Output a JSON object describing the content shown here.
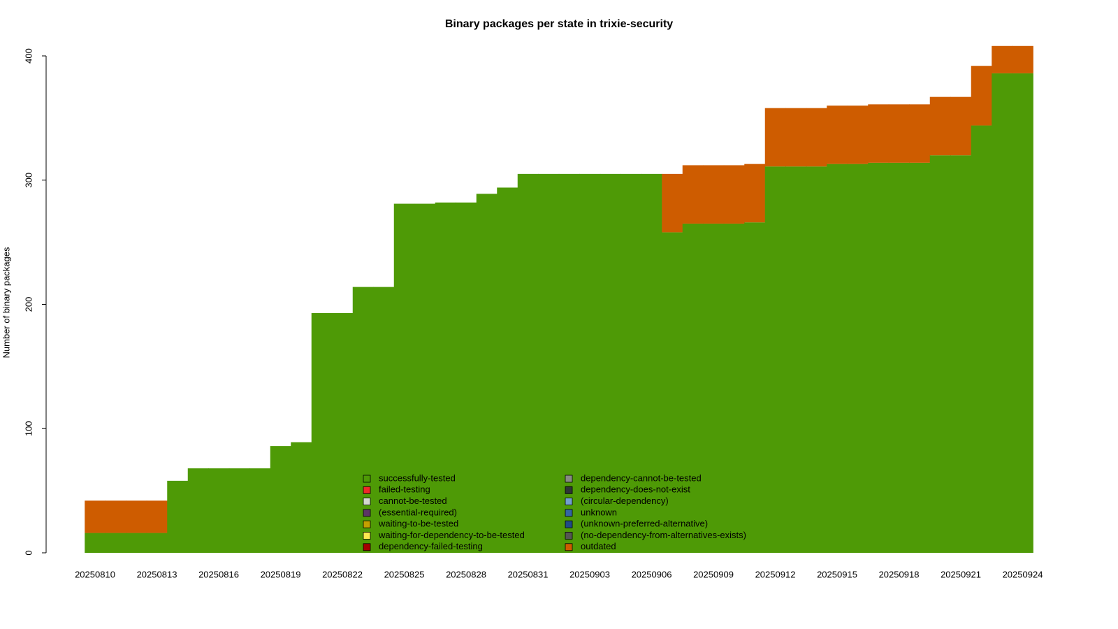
{
  "chart_data": {
    "type": "stacked-step-area",
    "title": "Binary packages per state in trixie-security",
    "y_label": "Number of binary packages",
    "ylim": [
      0,
      400
    ],
    "yticks": [
      0,
      100,
      200,
      300,
      400
    ],
    "categories": [
      "20250810",
      null,
      null,
      "20250813",
      null,
      null,
      "20250816",
      null,
      null,
      "20250819",
      null,
      null,
      "20250822",
      null,
      null,
      "20250825",
      null,
      null,
      "20250828",
      null,
      null,
      "20250831",
      null,
      null,
      "20250903",
      null,
      null,
      "20250906",
      null,
      null,
      "20250909",
      null,
      null,
      "20250912",
      null,
      null,
      "20250915",
      null,
      null,
      "20250918",
      null,
      null,
      "20250921",
      null,
      null,
      "20250924"
    ],
    "series": [
      {
        "name": "successfully-tested",
        "color": "#4e9a06",
        "values": [
          16,
          16,
          16,
          16,
          58,
          68,
          68,
          68,
          68,
          86,
          89,
          193,
          193,
          214,
          214,
          281,
          281,
          282,
          282,
          289,
          294,
          305,
          305,
          305,
          305,
          305,
          305,
          305,
          258,
          265,
          265,
          265,
          266,
          311,
          311,
          311,
          313,
          313,
          314,
          314,
          314,
          320,
          320,
          344,
          386,
          386
        ]
      },
      {
        "name": "failed-testing",
        "color": "#ef2929",
        "values": [
          0,
          0,
          0,
          0,
          0,
          0,
          0,
          0,
          0,
          0,
          0,
          0,
          0,
          0,
          0,
          0,
          0,
          0,
          0,
          0,
          0,
          0,
          0,
          0,
          0,
          0,
          0,
          0,
          0,
          0,
          0,
          0,
          0,
          0,
          0,
          0,
          0,
          0,
          0,
          0,
          0,
          0,
          0,
          0,
          0,
          0
        ]
      },
      {
        "name": "cannot-be-tested",
        "color": "#d3d7cf",
        "values": [
          0,
          0,
          0,
          0,
          0,
          0,
          0,
          0,
          0,
          0,
          0,
          0,
          0,
          0,
          0,
          0,
          0,
          0,
          0,
          0,
          0,
          0,
          0,
          0,
          0,
          0,
          0,
          0,
          0,
          0,
          0,
          0,
          0,
          0,
          0,
          0,
          0,
          0,
          0,
          0,
          0,
          0,
          0,
          0,
          0,
          0
        ]
      },
      {
        "name": "(essential-required)",
        "color": "#5c3566",
        "values": [
          0,
          0,
          0,
          0,
          0,
          0,
          0,
          0,
          0,
          0,
          0,
          0,
          0,
          0,
          0,
          0,
          0,
          0,
          0,
          0,
          0,
          0,
          0,
          0,
          0,
          0,
          0,
          0,
          0,
          0,
          0,
          0,
          0,
          0,
          0,
          0,
          0,
          0,
          0,
          0,
          0,
          0,
          0,
          0,
          0,
          0
        ]
      },
      {
        "name": "waiting-to-be-tested",
        "color": "#c4a000",
        "values": [
          0,
          0,
          0,
          0,
          0,
          0,
          0,
          0,
          0,
          0,
          0,
          0,
          0,
          0,
          0,
          0,
          0,
          0,
          0,
          0,
          0,
          0,
          0,
          0,
          0,
          0,
          0,
          0,
          0,
          0,
          0,
          0,
          0,
          0,
          0,
          0,
          0,
          0,
          0,
          0,
          0,
          0,
          0,
          0,
          0,
          0
        ]
      },
      {
        "name": "waiting-for-dependency-to-be-tested",
        "color": "#fce94f",
        "values": [
          0,
          0,
          0,
          0,
          0,
          0,
          0,
          0,
          0,
          0,
          0,
          0,
          0,
          0,
          0,
          0,
          0,
          0,
          0,
          0,
          0,
          0,
          0,
          0,
          0,
          0,
          0,
          0,
          0,
          0,
          0,
          0,
          0,
          0,
          0,
          0,
          0,
          0,
          0,
          0,
          0,
          0,
          0,
          0,
          0,
          0
        ]
      },
      {
        "name": "dependency-failed-testing",
        "color": "#a40000",
        "values": [
          0,
          0,
          0,
          0,
          0,
          0,
          0,
          0,
          0,
          0,
          0,
          0,
          0,
          0,
          0,
          0,
          0,
          0,
          0,
          0,
          0,
          0,
          0,
          0,
          0,
          0,
          0,
          0,
          0,
          0,
          0,
          0,
          0,
          0,
          0,
          0,
          0,
          0,
          0,
          0,
          0,
          0,
          0,
          0,
          0,
          0
        ]
      },
      {
        "name": "dependency-cannot-be-tested",
        "color": "#888a85",
        "values": [
          0,
          0,
          0,
          0,
          0,
          0,
          0,
          0,
          0,
          0,
          0,
          0,
          0,
          0,
          0,
          0,
          0,
          0,
          0,
          0,
          0,
          0,
          0,
          0,
          0,
          0,
          0,
          0,
          0,
          0,
          0,
          0,
          0,
          0,
          0,
          0,
          0,
          0,
          0,
          0,
          0,
          0,
          0,
          0,
          0,
          0
        ]
      },
      {
        "name": "dependency-does-not-exist",
        "color": "#2e3436",
        "values": [
          0,
          0,
          0,
          0,
          0,
          0,
          0,
          0,
          0,
          0,
          0,
          0,
          0,
          0,
          0,
          0,
          0,
          0,
          0,
          0,
          0,
          0,
          0,
          0,
          0,
          0,
          0,
          0,
          0,
          0,
          0,
          0,
          0,
          0,
          0,
          0,
          0,
          0,
          0,
          0,
          0,
          0,
          0,
          0,
          0,
          0
        ]
      },
      {
        "name": "(circular-dependency)",
        "color": "#729fcf",
        "values": [
          0,
          0,
          0,
          0,
          0,
          0,
          0,
          0,
          0,
          0,
          0,
          0,
          0,
          0,
          0,
          0,
          0,
          0,
          0,
          0,
          0,
          0,
          0,
          0,
          0,
          0,
          0,
          0,
          0,
          0,
          0,
          0,
          0,
          0,
          0,
          0,
          0,
          0,
          0,
          0,
          0,
          0,
          0,
          0,
          0,
          0
        ]
      },
      {
        "name": "unknown",
        "color": "#3465a4",
        "values": [
          0,
          0,
          0,
          0,
          0,
          0,
          0,
          0,
          0,
          0,
          0,
          0,
          0,
          0,
          0,
          0,
          0,
          0,
          0,
          0,
          0,
          0,
          0,
          0,
          0,
          0,
          0,
          0,
          0,
          0,
          0,
          0,
          0,
          0,
          0,
          0,
          0,
          0,
          0,
          0,
          0,
          0,
          0,
          0,
          0,
          0
        ]
      },
      {
        "name": "(unknown-preferred-alternative)",
        "color": "#204a87",
        "values": [
          0,
          0,
          0,
          0,
          0,
          0,
          0,
          0,
          0,
          0,
          0,
          0,
          0,
          0,
          0,
          0,
          0,
          0,
          0,
          0,
          0,
          0,
          0,
          0,
          0,
          0,
          0,
          0,
          0,
          0,
          0,
          0,
          0,
          0,
          0,
          0,
          0,
          0,
          0,
          0,
          0,
          0,
          0,
          0,
          0,
          0
        ]
      },
      {
        "name": "(no-dependency-from-alternatives-exists)",
        "color": "#555753",
        "values": [
          0,
          0,
          0,
          0,
          0,
          0,
          0,
          0,
          0,
          0,
          0,
          0,
          0,
          0,
          0,
          0,
          0,
          0,
          0,
          0,
          0,
          0,
          0,
          0,
          0,
          0,
          0,
          0,
          0,
          0,
          0,
          0,
          0,
          0,
          0,
          0,
          0,
          0,
          0,
          0,
          0,
          0,
          0,
          0,
          0,
          0
        ]
      },
      {
        "name": "outdated",
        "color": "#ce5c00",
        "values": [
          26,
          26,
          26,
          26,
          0,
          0,
          0,
          0,
          0,
          0,
          0,
          0,
          0,
          0,
          0,
          0,
          0,
          0,
          0,
          0,
          0,
          0,
          0,
          0,
          0,
          0,
          0,
          0,
          47,
          47,
          47,
          47,
          47,
          47,
          47,
          47,
          47,
          47,
          47,
          47,
          47,
          47,
          47,
          48,
          22,
          22
        ]
      }
    ]
  }
}
